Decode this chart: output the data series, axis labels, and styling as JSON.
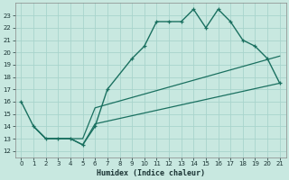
{
  "xlabel": "Humidex (Indice chaleur)",
  "bg_color": "#c8e8e0",
  "grid_color": "#a8d4cc",
  "line_color": "#1a7060",
  "xlim": [
    -0.5,
    21.5
  ],
  "ylim": [
    11.5,
    24.0
  ],
  "yticks": [
    12,
    13,
    14,
    15,
    16,
    17,
    18,
    19,
    20,
    21,
    22,
    23
  ],
  "xticks": [
    0,
    1,
    2,
    3,
    4,
    5,
    6,
    7,
    8,
    9,
    10,
    11,
    12,
    13,
    14,
    15,
    16,
    17,
    18,
    19,
    20,
    21
  ],
  "line1_x": [
    0,
    1,
    2,
    3,
    4,
    5,
    6,
    7,
    9,
    10,
    11,
    12,
    13,
    14,
    15,
    16,
    17,
    18,
    19,
    20,
    21
  ],
  "line1_y": [
    16,
    14,
    13,
    13,
    13,
    12.5,
    14,
    17,
    19.5,
    20.5,
    22.5,
    22.5,
    22.5,
    23.5,
    22,
    23.5,
    22.5,
    21,
    20.5,
    19.5,
    17.5
  ],
  "line2_x": [
    1,
    2,
    3,
    4,
    5,
    6,
    21
  ],
  "line2_y": [
    14,
    13,
    13,
    13,
    13,
    15.5,
    19.7
  ],
  "line3_x": [
    1,
    2,
    3,
    4,
    5,
    6,
    21
  ],
  "line3_y": [
    14,
    13,
    13,
    13,
    12.5,
    14.2,
    17.5
  ]
}
